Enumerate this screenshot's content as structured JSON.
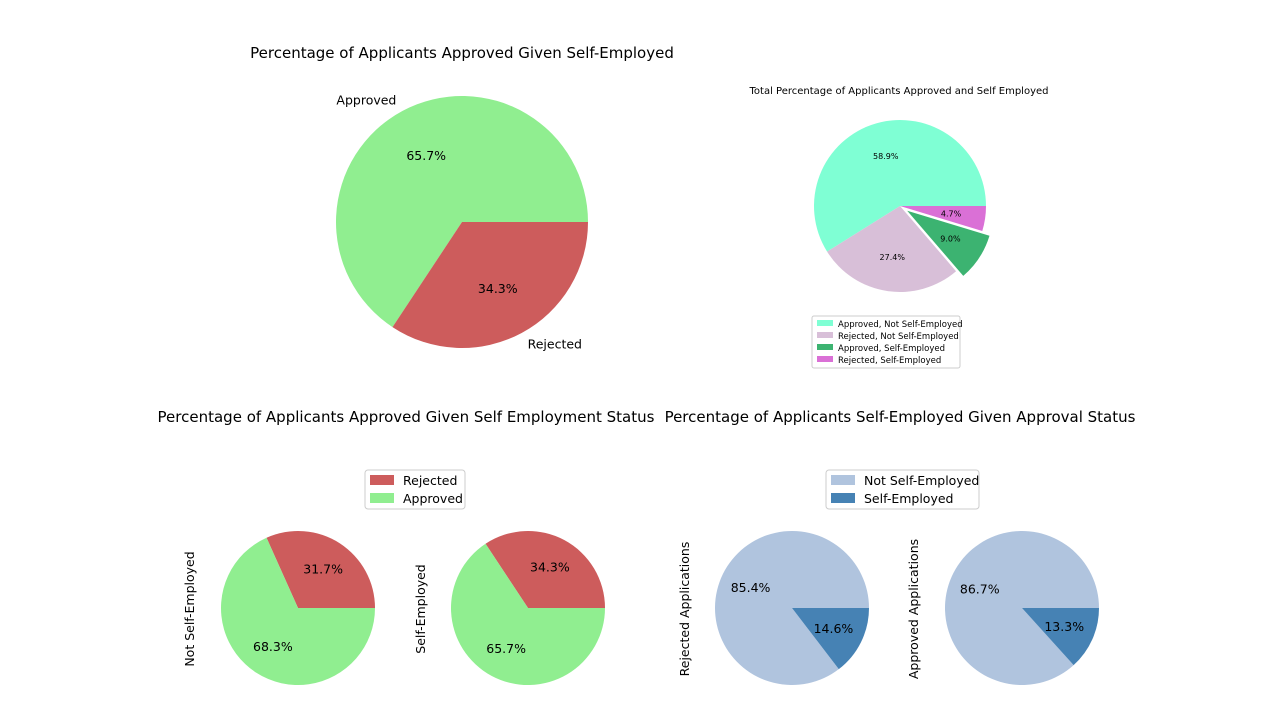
{
  "chart_data": [
    {
      "type": "pie",
      "title": "Percentage of Applicants Approved Given Self-Employed",
      "slices": [
        {
          "label": "Approved",
          "value": 65.7,
          "display": "65.7%",
          "color": "#90ee90"
        },
        {
          "label": "Rejected",
          "value": 34.3,
          "display": "34.3%",
          "color": "#cd5c5c"
        }
      ]
    },
    {
      "type": "pie",
      "title": "Total Percentage of Applicants Approved and Self Employed",
      "legend_position": "bottom",
      "slices": [
        {
          "label": "Approved, Not Self-Employed",
          "value": 58.9,
          "display": "58.9%",
          "color": "#7fffd4"
        },
        {
          "label": "Rejected, Not Self-Employed",
          "value": 27.4,
          "display": "27.4%",
          "color": "#d8bfd8"
        },
        {
          "label": "Approved, Self-Employed",
          "value": 9.0,
          "display": "9.0%",
          "color": "#3cb371",
          "exploded": true
        },
        {
          "label": "Rejected, Self-Employed",
          "value": 4.7,
          "display": "4.7%",
          "color": "#da70d6"
        }
      ]
    },
    {
      "type": "pie",
      "title": "Percentage of Applicants Approved Given Self Employment Status",
      "legend": [
        {
          "label": "Rejected",
          "color": "#cd5c5c"
        },
        {
          "label": "Approved",
          "color": "#90ee90"
        }
      ],
      "pies": [
        {
          "ylabel": "Not Self-Employed",
          "slices": [
            {
              "label": "Rejected",
              "value": 31.7,
              "display": "31.7%",
              "color": "#cd5c5c"
            },
            {
              "label": "Approved",
              "value": 68.3,
              "display": "68.3%",
              "color": "#90ee90"
            }
          ]
        },
        {
          "ylabel": "Self-Employed",
          "slices": [
            {
              "label": "Rejected",
              "value": 34.3,
              "display": "34.3%",
              "color": "#cd5c5c"
            },
            {
              "label": "Approved",
              "value": 65.7,
              "display": "65.7%",
              "color": "#90ee90"
            }
          ]
        }
      ]
    },
    {
      "type": "pie",
      "title": "Percentage of Applicants Self-Employed Given Approval Status",
      "legend": [
        {
          "label": "Not Self-Employed",
          "color": "#b0c4de"
        },
        {
          "label": "Self-Employed",
          "color": "#4682b4"
        }
      ],
      "pies": [
        {
          "ylabel": "Rejected Applications",
          "slices": [
            {
              "label": "Not Self-Employed",
              "value": 85.4,
              "display": "85.4%",
              "color": "#b0c4de"
            },
            {
              "label": "Self-Employed",
              "value": 14.6,
              "display": "14.6%",
              "color": "#4682b4"
            }
          ]
        },
        {
          "ylabel": "Approved Applications",
          "slices": [
            {
              "label": "Not Self-Employed",
              "value": 86.7,
              "display": "86.7%",
              "color": "#b0c4de"
            },
            {
              "label": "Self-Employed",
              "value": 13.3,
              "display": "13.3%",
              "color": "#4682b4"
            }
          ]
        }
      ]
    }
  ]
}
